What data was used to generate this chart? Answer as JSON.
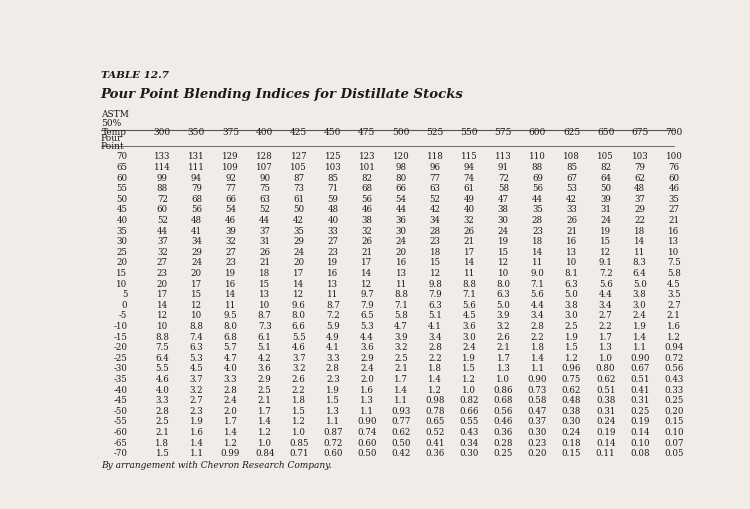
{
  "title_line1": "TABLE 12.7",
  "title_line2": "Pour Point Blending Indices for Distillate Stocks",
  "col_temps": [
    "300",
    "350",
    "375",
    "400",
    "425",
    "450",
    "475",
    "500",
    "525",
    "550",
    "575",
    "600",
    "625",
    "650",
    "675",
    "700"
  ],
  "rows": [
    {
      "pp": "70",
      "vals": [
        "133",
        "131",
        "129",
        "128",
        "127",
        "125",
        "123",
        "120",
        "118",
        "115",
        "113",
        "110",
        "108",
        "105",
        "103",
        "100"
      ]
    },
    {
      "pp": "65",
      "vals": [
        "114",
        "111",
        "109",
        "107",
        "105",
        "103",
        "101",
        "98",
        "96",
        "94",
        "91",
        "88",
        "85",
        "82",
        "79",
        "76"
      ]
    },
    {
      "pp": "60",
      "vals": [
        "99",
        "94",
        "92",
        "90",
        "87",
        "85",
        "82",
        "80",
        "77",
        "74",
        "72",
        "69",
        "67",
        "64",
        "62",
        "60"
      ]
    },
    {
      "pp": "55",
      "vals": [
        "88",
        "79",
        "77",
        "75",
        "73",
        "71",
        "68",
        "66",
        "63",
        "61",
        "58",
        "56",
        "53",
        "50",
        "48",
        "46"
      ]
    },
    {
      "pp": "50",
      "vals": [
        "72",
        "68",
        "66",
        "63",
        "61",
        "59",
        "56",
        "54",
        "52",
        "49",
        "47",
        "44",
        "42",
        "39",
        "37",
        "35"
      ]
    },
    {
      "pp": "45",
      "vals": [
        "60",
        "56",
        "54",
        "52",
        "50",
        "48",
        "46",
        "44",
        "42",
        "40",
        "38",
        "35",
        "33",
        "31",
        "29",
        "27"
      ]
    },
    {
      "pp": "40",
      "vals": [
        "52",
        "48",
        "46",
        "44",
        "42",
        "40",
        "38",
        "36",
        "34",
        "32",
        "30",
        "28",
        "26",
        "24",
        "22",
        "21"
      ]
    },
    {
      "pp": "35",
      "vals": [
        "44",
        "41",
        "39",
        "37",
        "35",
        "33",
        "32",
        "30",
        "28",
        "26",
        "24",
        "23",
        "21",
        "19",
        "18",
        "16"
      ]
    },
    {
      "pp": "30",
      "vals": [
        "37",
        "34",
        "32",
        "31",
        "29",
        "27",
        "26",
        "24",
        "23",
        "21",
        "19",
        "18",
        "16",
        "15",
        "14",
        "13"
      ]
    },
    {
      "pp": "25",
      "vals": [
        "32",
        "29",
        "27",
        "26",
        "24",
        "23",
        "21",
        "20",
        "18",
        "17",
        "15",
        "14",
        "13",
        "12",
        "11",
        "10"
      ]
    },
    {
      "pp": "20",
      "vals": [
        "27",
        "24",
        "23",
        "21",
        "20",
        "19",
        "17",
        "16",
        "15",
        "14",
        "12",
        "11",
        "10",
        "9.1",
        "8.3",
        "7.5"
      ]
    },
    {
      "pp": "15",
      "vals": [
        "23",
        "20",
        "19",
        "18",
        "17",
        "16",
        "14",
        "13",
        "12",
        "11",
        "10",
        "9.0",
        "8.1",
        "7.2",
        "6.4",
        "5.8"
      ]
    },
    {
      "pp": "10",
      "vals": [
        "20",
        "17",
        "16",
        "15",
        "14",
        "13",
        "12",
        "11",
        "9.8",
        "8.8",
        "8.0",
        "7.1",
        "6.3",
        "5.6",
        "5.0",
        "4.5"
      ]
    },
    {
      "pp": "5",
      "vals": [
        "17",
        "15",
        "14",
        "13",
        "12",
        "11",
        "9.7",
        "8.8",
        "7.9",
        "7.1",
        "6.3",
        "5.6",
        "5.0",
        "4.4",
        "3.8",
        "3.5"
      ]
    },
    {
      "pp": "0",
      "vals": [
        "14",
        "12",
        "11",
        "10",
        "9.6",
        "8.7",
        "7.9",
        "7.1",
        "6.3",
        "5.6",
        "5.0",
        "4.4",
        "3.8",
        "3.4",
        "3.0",
        "2.7"
      ]
    },
    {
      "pp": "-5",
      "vals": [
        "12",
        "10",
        "9.5",
        "8.7",
        "8.0",
        "7.2",
        "6.5",
        "5.8",
        "5.1",
        "4.5",
        "3.9",
        "3.4",
        "3.0",
        "2.7",
        "2.4",
        "2.1"
      ]
    },
    {
      "pp": "-10",
      "vals": [
        "10",
        "8.8",
        "8.0",
        "7.3",
        "6.6",
        "5.9",
        "5.3",
        "4.7",
        "4.1",
        "3.6",
        "3.2",
        "2.8",
        "2.5",
        "2.2",
        "1.9",
        "1.6"
      ]
    },
    {
      "pp": "-15",
      "vals": [
        "8.8",
        "7.4",
        "6.8",
        "6.1",
        "5.5",
        "4.9",
        "4.4",
        "3.9",
        "3.4",
        "3.0",
        "2.6",
        "2.2",
        "1.9",
        "1.7",
        "1.4",
        "1.2"
      ]
    },
    {
      "pp": "-20",
      "vals": [
        "7.5",
        "6.3",
        "5.7",
        "5.1",
        "4.6",
        "4.1",
        "3.6",
        "3.2",
        "2.8",
        "2.4",
        "2.1",
        "1.8",
        "1.5",
        "1.3",
        "1.1",
        "0.94"
      ]
    },
    {
      "pp": "-25",
      "vals": [
        "6.4",
        "5.3",
        "4.7",
        "4.2",
        "3.7",
        "3.3",
        "2.9",
        "2.5",
        "2.2",
        "1.9",
        "1.7",
        "1.4",
        "1.2",
        "1.0",
        "0.90",
        "0.72"
      ]
    },
    {
      "pp": "-30",
      "vals": [
        "5.5",
        "4.5",
        "4.0",
        "3.6",
        "3.2",
        "2.8",
        "2.4",
        "2.1",
        "1.8",
        "1.5",
        "1.3",
        "1.1",
        "0.96",
        "0.80",
        "0.67",
        "0.56"
      ]
    },
    {
      "pp": "-35",
      "vals": [
        "4.6",
        "3.7",
        "3.3",
        "2.9",
        "2.6",
        "2.3",
        "2.0",
        "1.7",
        "1.4",
        "1.2",
        "1.0",
        "0.90",
        "0.75",
        "0.62",
        "0.51",
        "0.43"
      ]
    },
    {
      "pp": "-40",
      "vals": [
        "4.0",
        "3.2",
        "2.8",
        "2.5",
        "2.2",
        "1.9",
        "1.6",
        "1.4",
        "1.2",
        "1.0",
        "0.86",
        "0.73",
        "0.62",
        "0.51",
        "0.41",
        "0.33"
      ]
    },
    {
      "pp": "-45",
      "vals": [
        "3.3",
        "2.7",
        "2.4",
        "2.1",
        "1.8",
        "1.5",
        "1.3",
        "1.1",
        "0.98",
        "0.82",
        "0.68",
        "0.58",
        "0.48",
        "0.38",
        "0.31",
        "0.25"
      ]
    },
    {
      "pp": "-50",
      "vals": [
        "2.8",
        "2.3",
        "2.0",
        "1.7",
        "1.5",
        "1.3",
        "1.1",
        "0.93",
        "0.78",
        "0.66",
        "0.56",
        "0.47",
        "0.38",
        "0.31",
        "0.25",
        "0.20"
      ]
    },
    {
      "pp": "-55",
      "vals": [
        "2.5",
        "1.9",
        "1.7",
        "1.4",
        "1.2",
        "1.1",
        "0.90",
        "0.77",
        "0.65",
        "0.55",
        "0.46",
        "0.37",
        "0.30",
        "0.24",
        "0.19",
        "0.15"
      ]
    },
    {
      "pp": "-60",
      "vals": [
        "2.1",
        "1.6",
        "1.4",
        "1.2",
        "1.0",
        "0.87",
        "0.74",
        "0.62",
        "0.52",
        "0.43",
        "0.36",
        "0.30",
        "0.24",
        "0.19",
        "0.14",
        "0.10"
      ]
    },
    {
      "pp": "-65",
      "vals": [
        "1.8",
        "1.4",
        "1.2",
        "1.0",
        "0.85",
        "0.72",
        "0.60",
        "0.50",
        "0.41",
        "0.34",
        "0.28",
        "0.23",
        "0.18",
        "0.14",
        "0.10",
        "0.07"
      ]
    },
    {
      "pp": "-70",
      "vals": [
        "1.5",
        "1.1",
        "0.99",
        "0.84",
        "0.71",
        "0.60",
        "0.50",
        "0.42",
        "0.36",
        "0.30",
        "0.25",
        "0.20",
        "0.15",
        "0.11",
        "0.08",
        "0.05"
      ]
    }
  ],
  "footer": "By arrangement with Chevron Research Company.",
  "bg_color": "#f0ede8",
  "text_color": "#1a1a1a",
  "line_color": "#555555"
}
